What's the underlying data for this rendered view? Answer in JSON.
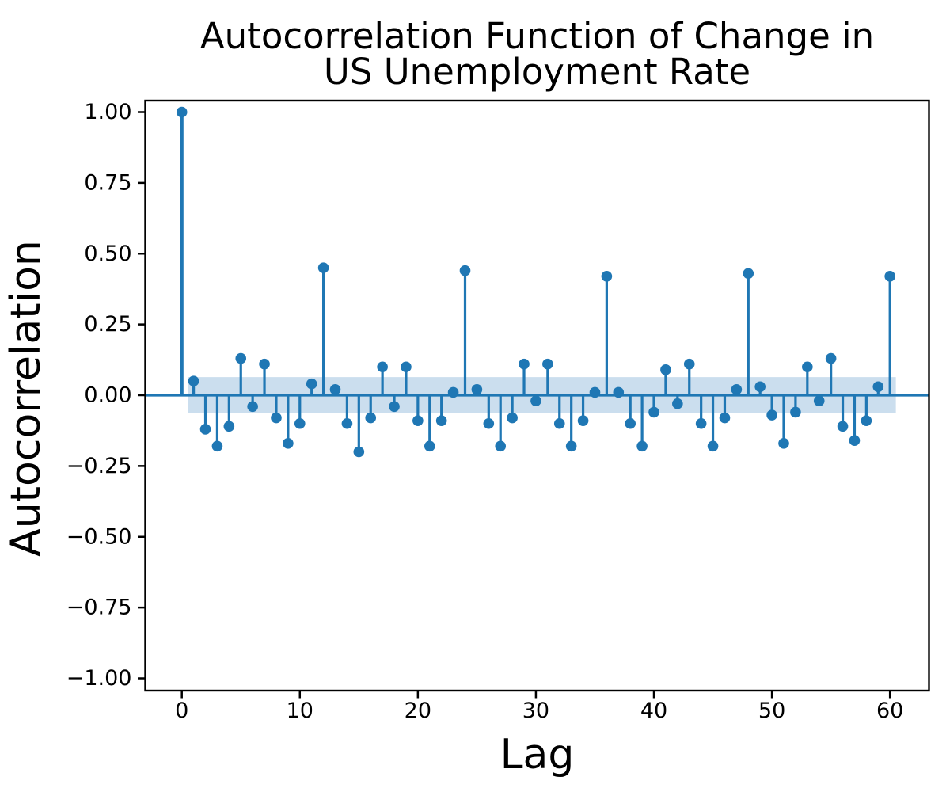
{
  "figure": {
    "title_lines": [
      "Autocorrelation Function of Change in",
      "US Unemployment Rate"
    ]
  },
  "chart_data": {
    "type": "stem",
    "title": "Autocorrelation Function of Change in US Unemployment Rate",
    "xlabel": "Lag",
    "ylabel": "Autocorrelation",
    "x": [
      0,
      1,
      2,
      3,
      4,
      5,
      6,
      7,
      8,
      9,
      10,
      11,
      12,
      13,
      14,
      15,
      16,
      17,
      18,
      19,
      20,
      21,
      22,
      23,
      24,
      25,
      26,
      27,
      28,
      29,
      30,
      31,
      32,
      33,
      34,
      35,
      36,
      37,
      38,
      39,
      40,
      41,
      42,
      43,
      44,
      45,
      46,
      47,
      48,
      49,
      50,
      51,
      52,
      53,
      54,
      55,
      56,
      57,
      58,
      59,
      60
    ],
    "values": [
      1.0,
      0.05,
      -0.12,
      -0.18,
      -0.11,
      0.13,
      -0.04,
      0.11,
      -0.08,
      -0.17,
      -0.1,
      0.04,
      0.45,
      0.02,
      -0.1,
      -0.2,
      -0.08,
      0.1,
      -0.04,
      0.1,
      -0.09,
      -0.18,
      -0.09,
      0.01,
      0.44,
      0.02,
      -0.1,
      -0.18,
      -0.08,
      0.11,
      -0.02,
      0.11,
      -0.1,
      -0.18,
      -0.09,
      0.01,
      0.42,
      0.01,
      -0.1,
      -0.18,
      -0.06,
      0.09,
      -0.03,
      0.11,
      -0.1,
      -0.18,
      -0.08,
      0.02,
      0.43,
      0.03,
      -0.07,
      -0.17,
      -0.06,
      0.1,
      -0.02,
      0.13,
      -0.11,
      -0.16,
      -0.09,
      0.03,
      0.42
    ],
    "confidence_band": {
      "upper": 0.064,
      "lower": -0.064,
      "x_start": 0.5,
      "x_end": 60.5
    },
    "xticks": [
      0,
      10,
      20,
      30,
      40,
      50,
      60
    ],
    "xtick_labels": [
      "0",
      "10",
      "20",
      "30",
      "40",
      "50",
      "60"
    ],
    "yticks": [
      1.0,
      0.75,
      0.5,
      0.25,
      0.0,
      -0.25,
      -0.5,
      -0.75,
      -1.0
    ],
    "ytick_labels": [
      "1.00",
      "0.75",
      "0.50",
      "0.25",
      "0.00",
      "−0.25",
      "−0.50",
      "−0.75",
      "−1.00"
    ],
    "xlim": [
      -3.1,
      63.3
    ],
    "ylim": [
      -1.04,
      1.04
    ],
    "grid": false,
    "legend": null,
    "colors": {
      "accent": "#1f77b4",
      "band": "#cbdeee",
      "text": "#000000",
      "background": "#ffffff"
    }
  }
}
